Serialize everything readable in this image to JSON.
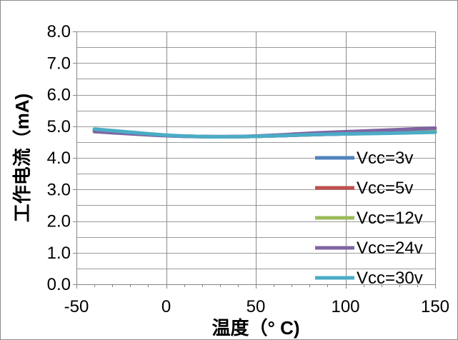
{
  "chart_data": {
    "type": "line",
    "xlabel": "温度（° C)",
    "ylabel": "工作电流（mA)",
    "xlim": [
      -50,
      150
    ],
    "ylim": [
      0,
      8
    ],
    "x_ticks": [
      -50,
      0,
      50,
      100,
      150
    ],
    "x_tick_labels": [
      "-50",
      "0",
      "50",
      "100",
      "150"
    ],
    "y_ticks": [
      0,
      1,
      2,
      3,
      4,
      5,
      6,
      7,
      8
    ],
    "y_tick_labels": [
      "0.0",
      "1.0",
      "2.0",
      "3.0",
      "4.0",
      "5.0",
      "6.0",
      "7.0",
      "8.0"
    ],
    "grid": true,
    "legend": "right",
    "smooth": true,
    "x": [
      -40,
      0,
      25,
      50,
      85,
      125,
      150
    ],
    "series": [
      {
        "name": "Vcc=3v",
        "color": "#4F81BD",
        "values": [
          4.87,
          4.71,
          4.67,
          4.68,
          4.74,
          4.79,
          4.82
        ]
      },
      {
        "name": "Vcc=5v",
        "color": "#C0504D",
        "values": [
          4.86,
          4.71,
          4.67,
          4.68,
          4.74,
          4.79,
          4.82
        ]
      },
      {
        "name": "Vcc=12v",
        "color": "#9BBB59",
        "values": [
          4.86,
          4.71,
          4.67,
          4.68,
          4.76,
          4.82,
          4.86
        ]
      },
      {
        "name": "Vcc=24v",
        "color": "#8064A2",
        "values": [
          4.83,
          4.7,
          4.67,
          4.69,
          4.79,
          4.88,
          4.94
        ]
      },
      {
        "name": "Vcc=30v",
        "color": "#4BACC6",
        "values": [
          4.91,
          4.72,
          4.67,
          4.68,
          4.74,
          4.78,
          4.81
        ]
      }
    ]
  }
}
